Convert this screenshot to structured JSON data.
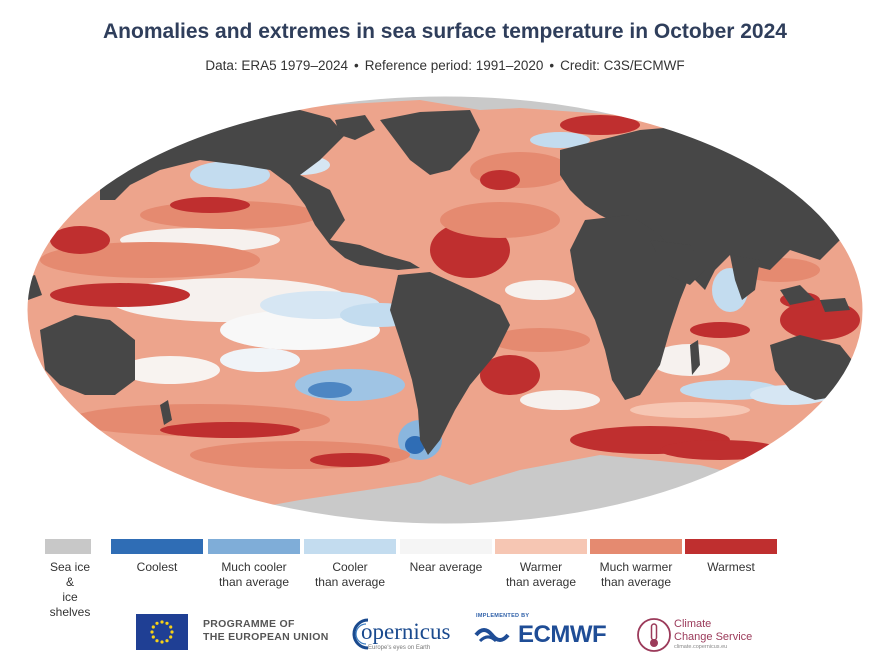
{
  "title": "Anomalies and extremes in sea surface temperature in October 2024",
  "subtitle": {
    "data": "Data: ERA5 1979–2024",
    "reference": "Reference period: 1991–2020",
    "credit": "Credit: C3S/ECMWF",
    "separator": "•"
  },
  "legend": [
    {
      "line1": "Sea ice &",
      "line2": "ice shelves",
      "color": "#c8c8c8"
    },
    {
      "line1": "Coolest",
      "line2": "",
      "color": "#2f6db5"
    },
    {
      "line1": "Much cooler",
      "line2": "than average",
      "color": "#7fadd8"
    },
    {
      "line1": "Cooler",
      "line2": "than average",
      "color": "#c3dcef"
    },
    {
      "line1": "Near average",
      "line2": "",
      "color": "#f5f5f5"
    },
    {
      "line1": "Warmer",
      "line2": "than average",
      "color": "#f6c6b3"
    },
    {
      "line1": "Much warmer",
      "line2": "than average",
      "color": "#e58a70"
    },
    {
      "line1": "Warmest",
      "line2": "",
      "color": "#bf2f2f"
    }
  ],
  "map_colors": {
    "land": "#474747",
    "ocean_base": "#eda48c",
    "ice": "#c9c9c9"
  },
  "logos": {
    "eu_line1": "PROGRAMME OF",
    "eu_line2": "THE EUROPEAN UNION",
    "copernicus": "opernicus",
    "copernicus_tagline": "Europe's eyes on Earth",
    "ecmwf_implemented": "IMPLEMENTED BY",
    "ecmwf": "ECMWF",
    "c3s_line1": "Climate",
    "c3s_line2": "Change Service",
    "c3s_url": "climate.copernicus.eu"
  }
}
